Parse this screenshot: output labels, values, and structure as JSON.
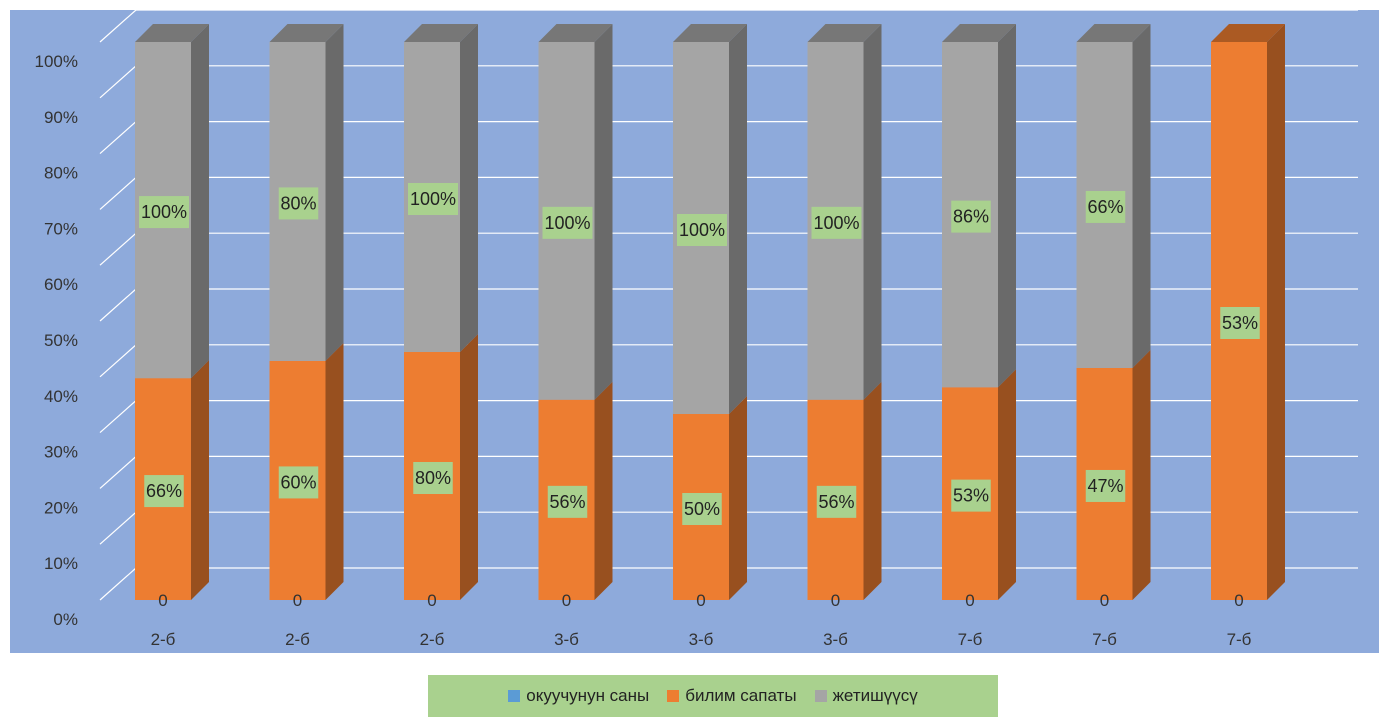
{
  "chart_data": {
    "type": "bar",
    "stacking": "percent",
    "three_d": true,
    "categories": [
      "2-б",
      "2-б",
      "2-б",
      "3-б",
      "3-б",
      "3-б",
      "7-б",
      "7-б",
      "7-б"
    ],
    "series": [
      {
        "name": "окуучунун саны",
        "values": [
          0,
          0,
          0,
          0,
          0,
          0,
          0,
          0,
          0
        ],
        "labels": [
          "0",
          "0",
          "0",
          "0",
          "0",
          "0",
          "0",
          "0",
          "0"
        ],
        "color": "#5b9bd5"
      },
      {
        "name": "билим сапаты",
        "values": [
          66,
          60,
          80,
          56,
          50,
          56,
          53,
          47,
          53
        ],
        "labels": [
          "66%",
          "60%",
          "80%",
          "56%",
          "50%",
          "56%",
          "53%",
          "47%",
          "53%"
        ],
        "color": "#ed7d31"
      },
      {
        "name": "жетишүүсү",
        "values": [
          100,
          80,
          100,
          100,
          100,
          100,
          86,
          66,
          null
        ],
        "labels": [
          "100%",
          "80%",
          "100%",
          "100%",
          "100%",
          "100%",
          "86%",
          "66%",
          ""
        ],
        "color": "#a5a5a5"
      }
    ],
    "y_ticks": [
      "0%",
      "10%",
      "20%",
      "30%",
      "40%",
      "50%",
      "60%",
      "70%",
      "80%",
      "90%",
      "100%"
    ],
    "ylim": [
      0,
      100
    ],
    "grid": true,
    "legend_position": "bottom",
    "colors": {
      "plot_background": "#8eaadb",
      "legend_background": "#a9d18e",
      "label_background": "#a9d18e"
    }
  }
}
